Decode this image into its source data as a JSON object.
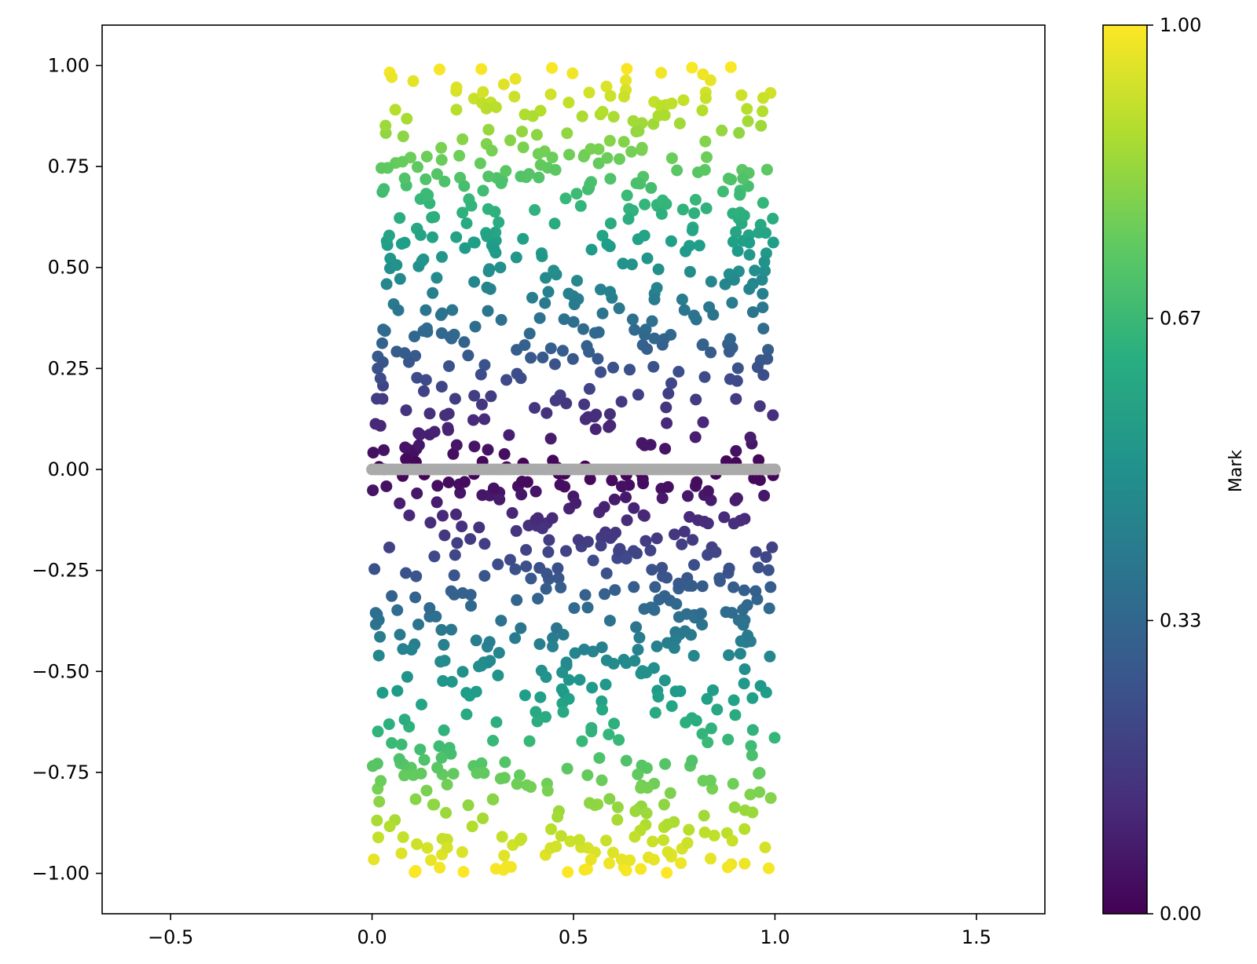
{
  "chart_data": {
    "type": "scatter",
    "title": "",
    "xlabel": "",
    "ylabel": "",
    "xlim": [
      -0.67,
      1.67
    ],
    "ylim": [
      -1.1,
      1.1
    ],
    "xticks": [
      {
        "value": -0.5,
        "label": "−0.5"
      },
      {
        "value": 0.0,
        "label": "0.0"
      },
      {
        "value": 0.5,
        "label": "0.5"
      },
      {
        "value": 1.0,
        "label": "1.0"
      },
      {
        "value": 1.5,
        "label": "1.5"
      }
    ],
    "yticks": [
      {
        "value": 1.0,
        "label": "1.00"
      },
      {
        "value": 0.75,
        "label": "0.75"
      },
      {
        "value": 0.5,
        "label": "0.50"
      },
      {
        "value": 0.25,
        "label": "0.25"
      },
      {
        "value": 0.0,
        "label": "0.00"
      },
      {
        "value": -0.25,
        "label": "−0.25"
      },
      {
        "value": -0.5,
        "label": "−0.50"
      },
      {
        "value": -0.75,
        "label": "−0.75"
      },
      {
        "value": -1.0,
        "label": "−1.00"
      }
    ],
    "grid": false,
    "legend": "none",
    "colorbar": {
      "label": "Mark",
      "colormap": "viridis",
      "range": [
        0,
        1
      ],
      "ticks": [
        {
          "value": 1.0,
          "label": "1.00"
        },
        {
          "value": 0.67,
          "label": "0.67"
        },
        {
          "value": 0.33,
          "label": "0.33"
        },
        {
          "value": 0.0,
          "label": "0.00"
        }
      ]
    },
    "series": [
      {
        "description": "random points, color = |y|",
        "color_rule": "abs_y_viridis",
        "count": 1000,
        "x_range": [
          0,
          1
        ],
        "y_range": [
          -1,
          1
        ]
      },
      {
        "description": "points on y = 0",
        "color": "#aaaaaa",
        "count": 120,
        "x_range": [
          0,
          1
        ],
        "y": 0
      }
    ]
  }
}
